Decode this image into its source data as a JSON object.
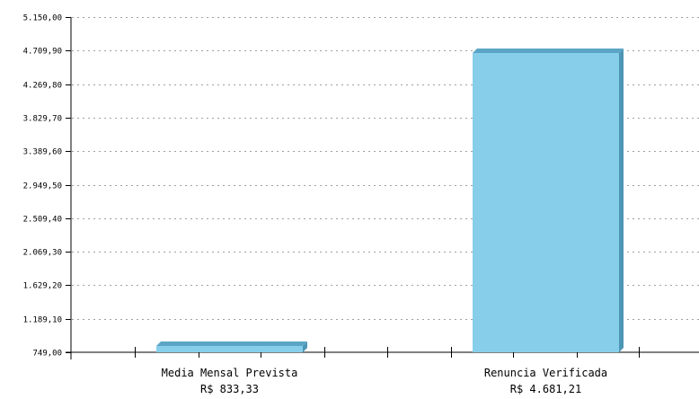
{
  "chart_data": {
    "type": "bar",
    "categories": [
      "Media Mensal Prevista",
      "Renuncia Verificada"
    ],
    "category_values": [
      "R$ 833,33",
      "R$ 4.681,21"
    ],
    "values": [
      833.33,
      4681.21
    ],
    "ylim": [
      749.0,
      5150.0
    ],
    "yticks": [
      749.0,
      1189.1,
      1629.2,
      2069.3,
      2509.4,
      2949.5,
      3389.6,
      3829.7,
      4269.8,
      4709.9,
      5150.0
    ],
    "ytick_labels": [
      "749,00",
      "1.189,10",
      "1.629,20",
      "2.069,30",
      "2.509,40",
      "2.949,50",
      "3.389,60",
      "3.829,70",
      "4.269,80",
      "4.709,90",
      "5.150,00"
    ],
    "grid": true,
    "legend": "none",
    "colors": {
      "bar_front": "#87CEEB",
      "bar_top": "#5BA6C6",
      "bar_side": "#4E96B5",
      "grid": "#a0a0a0",
      "axis": "#000000"
    }
  }
}
